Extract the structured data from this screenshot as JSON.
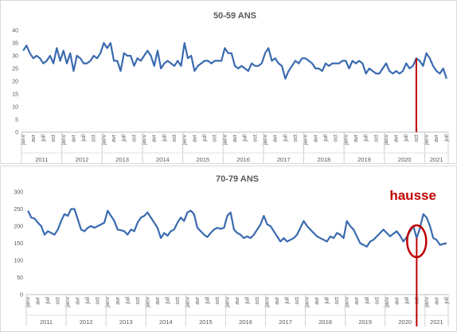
{
  "chart_data": [
    {
      "type": "line",
      "title": "50-59 ANS",
      "ylim": [
        0,
        40
      ],
      "yticks": [
        0,
        5,
        10,
        15,
        20,
        25,
        30,
        35,
        40
      ],
      "month_labels": [
        "janv",
        "avr",
        "juil",
        "oct"
      ],
      "years": [
        "2011",
        "2012",
        "2013",
        "2014",
        "2015",
        "2016",
        "2017",
        "2018",
        "2019",
        "2020",
        "2021"
      ],
      "grid": false,
      "line_color": "#3a6ab0",
      "marker_color": "#c00000",
      "marker_month": "2020-10",
      "series": [
        {
          "x": [
            "2011-01",
            "2011-02",
            "2011-03",
            "2011-04",
            "2011-05",
            "2011-06",
            "2011-07",
            "2011-08",
            "2011-09",
            "2011-10",
            "2011-11",
            "2011-12",
            "2012-01",
            "2012-02",
            "2012-03",
            "2012-04",
            "2012-05",
            "2012-06",
            "2012-07",
            "2012-08",
            "2012-09",
            "2012-10",
            "2012-11",
            "2012-12",
            "2013-01",
            "2013-02",
            "2013-03",
            "2013-04",
            "2013-05",
            "2013-06",
            "2013-07",
            "2013-08",
            "2013-09",
            "2013-10",
            "2013-11",
            "2013-12",
            "2014-01",
            "2014-02",
            "2014-03",
            "2014-04",
            "2014-05",
            "2014-06",
            "2014-07",
            "2014-08",
            "2014-09",
            "2014-10",
            "2014-11",
            "2014-12",
            "2015-01",
            "2015-02",
            "2015-03",
            "2015-04",
            "2015-05",
            "2015-06",
            "2015-07",
            "2015-08",
            "2015-09",
            "2015-10",
            "2015-11",
            "2015-12",
            "2016-01",
            "2016-02",
            "2016-03",
            "2016-04",
            "2016-05",
            "2016-06",
            "2016-07",
            "2016-08",
            "2016-09",
            "2016-10",
            "2016-11",
            "2016-12",
            "2017-01",
            "2017-02",
            "2017-03",
            "2017-04",
            "2017-05",
            "2017-06",
            "2017-07",
            "2017-08",
            "2017-09",
            "2017-10",
            "2017-11",
            "2017-12",
            "2018-01",
            "2018-02",
            "2018-03",
            "2018-04",
            "2018-05",
            "2018-06",
            "2018-07",
            "2018-08",
            "2018-09",
            "2018-10",
            "2018-11",
            "2018-12",
            "2019-01",
            "2019-02",
            "2019-03",
            "2019-04",
            "2019-05",
            "2019-06",
            "2019-07",
            "2019-08",
            "2019-09",
            "2019-10",
            "2019-11",
            "2019-12",
            "2020-01",
            "2020-02",
            "2020-03",
            "2020-04",
            "2020-05",
            "2020-06",
            "2020-07",
            "2020-08",
            "2020-09",
            "2020-10",
            "2020-11",
            "2020-12",
            "2021-01",
            "2021-02",
            "2021-03",
            "2021-04",
            "2021-05",
            "2021-06",
            "2021-07"
          ],
          "values": [
            32,
            34,
            31,
            29,
            30,
            29,
            27,
            28,
            30,
            27,
            33,
            28,
            32,
            27,
            31,
            24,
            30,
            29,
            27,
            27,
            28,
            30,
            29,
            31,
            35,
            33,
            35,
            28,
            28,
            24,
            31,
            30,
            30,
            26,
            29,
            28,
            30,
            32,
            30,
            26,
            32,
            25,
            27,
            28,
            27,
            26,
            28,
            26,
            35,
            29,
            30,
            24,
            26,
            27,
            28,
            28,
            27,
            28,
            28,
            28,
            33,
            31,
            31,
            26,
            25,
            26,
            25,
            24,
            27,
            26,
            26,
            27,
            31,
            33,
            28,
            29,
            27,
            26,
            21,
            24,
            26,
            28,
            27,
            29,
            29,
            28,
            27,
            25,
            25,
            24,
            27,
            26,
            27,
            27,
            27,
            28,
            28,
            25,
            28,
            27,
            28,
            27,
            23,
            25,
            24,
            23,
            23,
            25,
            27,
            24,
            23,
            24,
            23,
            24,
            27,
            25,
            26,
            29,
            28,
            26,
            31,
            29,
            26,
            24,
            23,
            25,
            21
          ]
        }
      ]
    },
    {
      "type": "line",
      "title": "70-79 ANS",
      "ylim": [
        0,
        300
      ],
      "yticks": [
        0,
        50,
        100,
        150,
        200,
        250,
        300
      ],
      "month_labels": [
        "janv",
        "avr",
        "juil",
        "oct"
      ],
      "years": [
        "2011",
        "2012",
        "2013",
        "2014",
        "2015",
        "2016",
        "2017",
        "2018",
        "2019",
        "2020",
        "2021"
      ],
      "grid": false,
      "line_color": "#3a6ab0",
      "marker_color": "#c00000",
      "marker_month": "2020-10",
      "annotation": "hausse",
      "series": [
        {
          "x": [
            "2011-01",
            "2011-02",
            "2011-03",
            "2011-04",
            "2011-05",
            "2011-06",
            "2011-07",
            "2011-08",
            "2011-09",
            "2011-10",
            "2011-11",
            "2011-12",
            "2012-01",
            "2012-02",
            "2012-03",
            "2012-04",
            "2012-05",
            "2012-06",
            "2012-07",
            "2012-08",
            "2012-09",
            "2012-10",
            "2012-11",
            "2012-12",
            "2013-01",
            "2013-02",
            "2013-03",
            "2013-04",
            "2013-05",
            "2013-06",
            "2013-07",
            "2013-08",
            "2013-09",
            "2013-10",
            "2013-11",
            "2013-12",
            "2014-01",
            "2014-02",
            "2014-03",
            "2014-04",
            "2014-05",
            "2014-06",
            "2014-07",
            "2014-08",
            "2014-09",
            "2014-10",
            "2014-11",
            "2014-12",
            "2015-01",
            "2015-02",
            "2015-03",
            "2015-04",
            "2015-05",
            "2015-06",
            "2015-07",
            "2015-08",
            "2015-09",
            "2015-10",
            "2015-11",
            "2015-12",
            "2016-01",
            "2016-02",
            "2016-03",
            "2016-04",
            "2016-05",
            "2016-06",
            "2016-07",
            "2016-08",
            "2016-09",
            "2016-10",
            "2016-11",
            "2016-12",
            "2017-01",
            "2017-02",
            "2017-03",
            "2017-04",
            "2017-05",
            "2017-06",
            "2017-07",
            "2017-08",
            "2017-09",
            "2017-10",
            "2017-11",
            "2017-12",
            "2018-01",
            "2018-02",
            "2018-03",
            "2018-04",
            "2018-05",
            "2018-06",
            "2018-07",
            "2018-08",
            "2018-09",
            "2018-10",
            "2018-11",
            "2018-12",
            "2019-01",
            "2019-02",
            "2019-03",
            "2019-04",
            "2019-05",
            "2019-06",
            "2019-07",
            "2019-08",
            "2019-09",
            "2019-10",
            "2019-11",
            "2019-12",
            "2020-01",
            "2020-02",
            "2020-03",
            "2020-04",
            "2020-05",
            "2020-06",
            "2020-07",
            "2020-08",
            "2020-09",
            "2020-10",
            "2020-11",
            "2020-12",
            "2021-01",
            "2021-02",
            "2021-03",
            "2021-04",
            "2021-05",
            "2021-06",
            "2021-07"
          ],
          "values": [
            245,
            225,
            222,
            210,
            200,
            175,
            185,
            180,
            175,
            190,
            215,
            235,
            230,
            250,
            250,
            220,
            190,
            185,
            195,
            200,
            195,
            200,
            205,
            210,
            245,
            230,
            215,
            190,
            188,
            185,
            175,
            190,
            185,
            210,
            225,
            230,
            240,
            225,
            210,
            195,
            165,
            180,
            172,
            185,
            190,
            210,
            225,
            215,
            240,
            245,
            235,
            195,
            185,
            175,
            168,
            180,
            190,
            195,
            192,
            195,
            230,
            240,
            190,
            180,
            175,
            165,
            170,
            165,
            175,
            190,
            205,
            230,
            205,
            200,
            185,
            170,
            155,
            165,
            155,
            160,
            165,
            175,
            195,
            215,
            200,
            190,
            180,
            170,
            165,
            160,
            155,
            170,
            165,
            180,
            175,
            165,
            215,
            200,
            190,
            170,
            150,
            145,
            140,
            155,
            160,
            170,
            180,
            190,
            180,
            170,
            178,
            185,
            172,
            155,
            168,
            185,
            200,
            165,
            195,
            235,
            225,
            200,
            165,
            160,
            145,
            148,
            150
          ]
        }
      ]
    }
  ]
}
